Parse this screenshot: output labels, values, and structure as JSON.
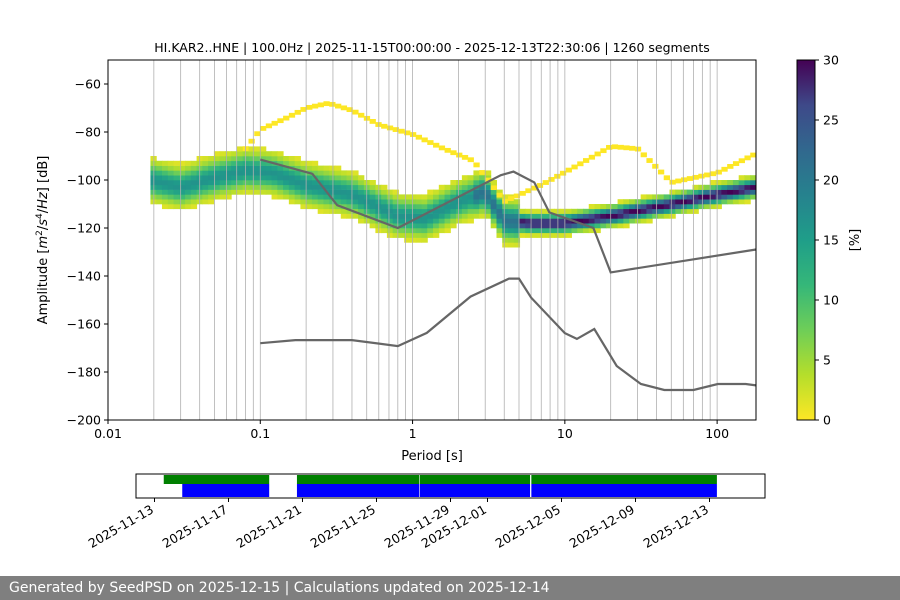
{
  "chart_data": [
    {
      "type": "heatmap",
      "title": "HI.KAR2..HNE | 100.0Hz | 2025-11-15T00:00:00 - 2025-12-13T22:30:06 | 1260 segments",
      "xlabel": "Period [s]",
      "ylabel_parts": [
        "Amplitude [",
        "m",
        "2",
        "/",
        "s",
        "4",
        "/",
        "Hz",
        "] [dB]"
      ],
      "x_scale": "log",
      "xlim": [
        0.01,
        180
      ],
      "ylim": [
        -200,
        -50
      ],
      "x_ticks": [
        {
          "value": 0.01,
          "label": "0.01"
        },
        {
          "value": 0.1,
          "label": "0.1"
        },
        {
          "value": 1,
          "label": "1"
        },
        {
          "value": 10,
          "label": "10"
        },
        {
          "value": 100,
          "label": "100"
        }
      ],
      "y_ticks": [
        {
          "value": -60,
          "label": "−60"
        },
        {
          "value": -80,
          "label": "−80"
        },
        {
          "value": -100,
          "label": "−100"
        },
        {
          "value": -120,
          "label": "−120"
        },
        {
          "value": -140,
          "label": "−140"
        },
        {
          "value": -160,
          "label": "−160"
        },
        {
          "value": -180,
          "label": "−180"
        },
        {
          "value": -200,
          "label": "−200"
        }
      ],
      "grid": "vertical",
      "colorbar": {
        "label": "[%]",
        "range": [
          0,
          30
        ],
        "ticks": [
          0,
          5,
          10,
          15,
          20,
          25,
          30
        ],
        "colormap": "viridis_r"
      },
      "psd_mode": {
        "x": [
          0.019,
          0.03,
          0.05,
          0.08,
          0.12,
          0.2,
          0.4,
          0.8,
          1.2,
          2.0,
          3.0,
          4.0,
          6.0,
          10,
          20,
          50,
          100,
          180
        ],
        "y": [
          -101,
          -104,
          -100,
          -97,
          -98,
          -103,
          -107,
          -116,
          -117,
          -110,
          -106,
          -118,
          -119,
          -119,
          -116,
          -111,
          -107,
          -104
        ]
      },
      "psd_upper": {
        "x": [
          0.08,
          0.1,
          0.15,
          0.2,
          0.28,
          0.4,
          0.6,
          1.0,
          1.6,
          2.5,
          4.0,
          7.0,
          12,
          20,
          30,
          50,
          100,
          180
        ],
        "y": [
          -88,
          -80,
          -75,
          -71,
          -69,
          -72,
          -78,
          -82,
          -88,
          -93,
          -110,
          -103,
          -95,
          -87,
          -88,
          -102,
          -98,
          -90
        ]
      },
      "nhnm": {
        "x": [
          0.1,
          0.22,
          0.32,
          0.8,
          3.8,
          4.6,
          6.3,
          7.9,
          15.4,
          20,
          354.8
        ],
        "y": [
          -91.5,
          -97.4,
          -110.5,
          -120,
          -98,
          -96.5,
          -101,
          -113.5,
          -120,
          -138.5,
          -126
        ]
      },
      "nlnm": {
        "x": [
          0.1,
          0.17,
          0.4,
          0.8,
          1.24,
          2.4,
          4.3,
          5.0,
          6.0,
          10,
          12,
          15.6,
          21.9,
          31.6,
          45,
          70,
          101,
          154,
          180
        ],
        "y": [
          -168,
          -166.7,
          -166.7,
          -169.2,
          -163.7,
          -148.6,
          -141.1,
          -141.1,
          -149,
          -163.8,
          -166.2,
          -162.1,
          -177.5,
          -185,
          -187.5,
          -187.5,
          -185,
          -185,
          -185.6
        ]
      }
    },
    {
      "type": "timeline",
      "xlim": [
        "2025-11-12",
        "2025-12-16"
      ],
      "x_ticks": [
        "2025-11-13",
        "2025-11-17",
        "2025-11-21",
        "2025-11-25",
        "2025-11-29",
        "2025-12-01",
        "2025-12-05",
        "2025-12-09",
        "2025-12-13"
      ],
      "green_segments": [
        [
          "2025-11-13.5",
          "2025-11-19.2"
        ],
        [
          "2025-11-20.7",
          "2025-12-13.4"
        ]
      ],
      "blue_segments": [
        [
          "2025-11-14.5",
          "2025-11-19.2"
        ],
        [
          "2025-11-20.7",
          "2025-12-13.4"
        ]
      ],
      "colors": {
        "green": "#008000",
        "blue": "#0000ff"
      }
    }
  ],
  "footer": "Generated by SeedPSD on 2025-12-15 | Calculations updated on 2025-12-14"
}
